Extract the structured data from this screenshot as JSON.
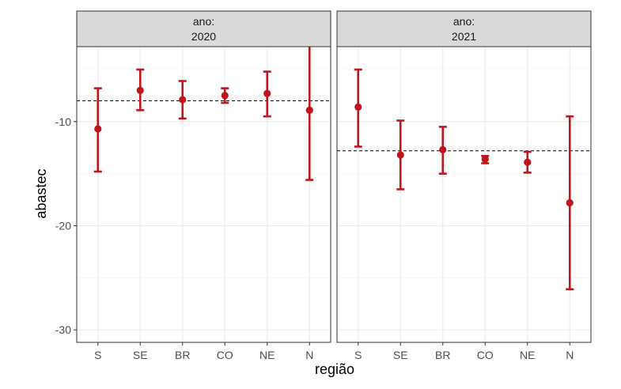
{
  "chart_data": {
    "type": "errorbar",
    "xlabel": "região",
    "ylabel": "abastec",
    "ylim": [
      -31.2,
      -2.8
    ],
    "y_ticks": [
      -10,
      -20,
      -30
    ],
    "y_tick_labels": [
      "-10",
      "-20",
      "-30"
    ],
    "grid": true,
    "colors": {
      "point": "#c0151c",
      "reference_line": "#000000",
      "strip_bg": "#d9d9d9",
      "panel_border": "#333333",
      "grid": "#ebebeb"
    },
    "categories": [
      "S",
      "SE",
      "BR",
      "CO",
      "NE",
      "N"
    ],
    "panels": [
      {
        "strip_label": "ano:",
        "strip_value": "2020",
        "reference_line": -8.0,
        "points": [
          {
            "x": "S",
            "y": -10.7,
            "ymin": -14.8,
            "ymax": -6.8
          },
          {
            "x": "SE",
            "y": -7.0,
            "ymin": -8.9,
            "ymax": -5.0
          },
          {
            "x": "BR",
            "y": -7.9,
            "ymin": -9.7,
            "ymax": -6.1
          },
          {
            "x": "CO",
            "y": -7.5,
            "ymin": -8.2,
            "ymax": -6.8
          },
          {
            "x": "NE",
            "y": -7.3,
            "ymin": -9.5,
            "ymax": -5.2
          },
          {
            "x": "N",
            "y": -8.9,
            "ymin": -15.6,
            "ymax": -2.5
          }
        ]
      },
      {
        "strip_label": "ano:",
        "strip_value": "2021",
        "reference_line": -12.8,
        "points": [
          {
            "x": "S",
            "y": -8.6,
            "ymin": -12.4,
            "ymax": -5.0
          },
          {
            "x": "SE",
            "y": -13.2,
            "ymin": -16.5,
            "ymax": -9.9
          },
          {
            "x": "BR",
            "y": -12.7,
            "ymin": -15.0,
            "ymax": -10.5
          },
          {
            "x": "CO",
            "y": -13.6,
            "ymin": -14.0,
            "ymax": -13.3
          },
          {
            "x": "NE",
            "y": -13.9,
            "ymin": -14.9,
            "ymax": -12.9
          },
          {
            "x": "N",
            "y": -17.8,
            "ymin": -26.1,
            "ymax": -9.5
          }
        ]
      }
    ]
  }
}
